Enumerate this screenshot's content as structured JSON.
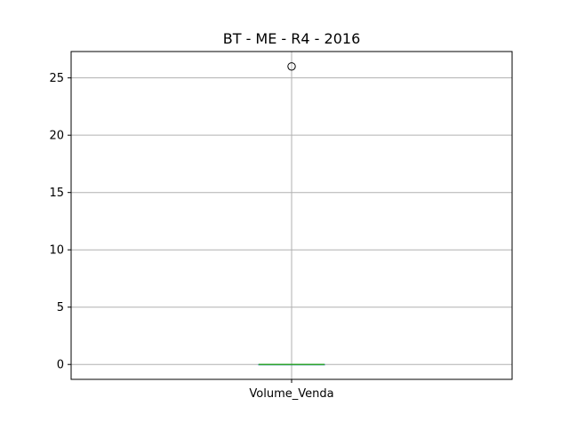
{
  "chart_data": {
    "type": "box",
    "title": "BT - ME - R4 - 2016",
    "categories": [
      "Volume_Venda"
    ],
    "xlabel": "",
    "ylabel": "",
    "ylim": [
      -1.3,
      27.3
    ],
    "yticks": [
      0,
      5,
      10,
      15,
      20,
      25
    ],
    "ytick_labels": [
      "0",
      "5",
      "10",
      "15",
      "20",
      "25"
    ],
    "grid": true,
    "boxes": [
      {
        "name": "Volume_Venda",
        "whisker_low": 0,
        "q1": 0,
        "median": 0,
        "q3": 0,
        "whisker_high": 0,
        "outliers": [
          26
        ]
      }
    ],
    "colors": {
      "box": "#1f77b4",
      "median": "#2ca02c",
      "grid": "#b0b0b0",
      "axes": "#000000"
    }
  }
}
